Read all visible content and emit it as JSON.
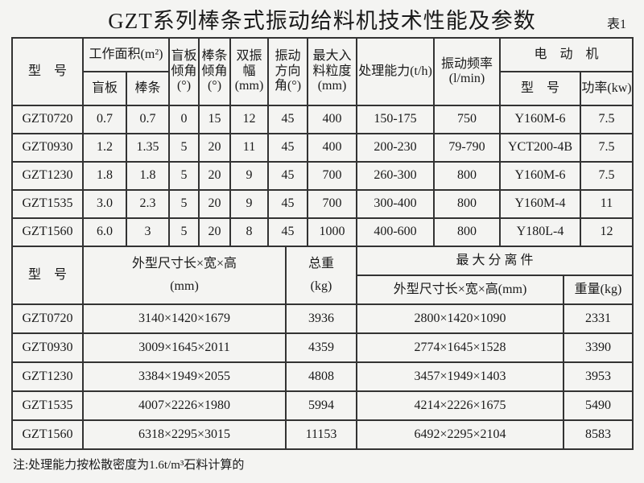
{
  "title": "GZT系列棒条式振动给料机技术性能及参数",
  "table_no": "表1",
  "t1": {
    "h": {
      "model": "型　号",
      "area": "工作面积(m²)",
      "area_blind": "盲板",
      "area_bar": "棒条",
      "blind_angle": "盲板倾角(°)",
      "bar_angle": "棒条倾角(°)",
      "amp": "双振幅(mm)",
      "dir": "振动方向角(°)",
      "maxfeed": "最大入料粒度(mm)",
      "cap": "处理能力(t/h)",
      "freq": "振动频率(l/min)",
      "motor": "电　动　机",
      "motor_model": "型　号",
      "power": "功率(kw)"
    },
    "rows": [
      [
        "GZT0720",
        "0.7",
        "0.7",
        "0",
        "15",
        "12",
        "45",
        "400",
        "150-175",
        "750",
        "Y160M-6",
        "7.5"
      ],
      [
        "GZT0930",
        "1.2",
        "1.35",
        "5",
        "20",
        "11",
        "45",
        "400",
        "200-230",
        "79-790",
        "YCT200-4B",
        "7.5"
      ],
      [
        "GZT1230",
        "1.8",
        "1.8",
        "5",
        "20",
        "9",
        "45",
        "700",
        "260-300",
        "800",
        "Y160M-6",
        "7.5"
      ],
      [
        "GZT1535",
        "3.0",
        "2.3",
        "5",
        "20",
        "9",
        "45",
        "700",
        "300-400",
        "800",
        "Y160M-4",
        "11"
      ],
      [
        "GZT1560",
        "6.0",
        "3",
        "5",
        "20",
        "8",
        "45",
        "1000",
        "400-600",
        "800",
        "Y180L-4",
        "12"
      ]
    ]
  },
  "t2": {
    "h": {
      "model": "型　号",
      "dims": "外型尺寸长×宽×高",
      "dims_unit": "(mm)",
      "weight": "总重",
      "weight_unit": "(kg)",
      "part": "最 大 分 离 件",
      "part_dims": "外型尺寸长×宽×高(mm)",
      "part_weight": "重量(kg)"
    },
    "rows": [
      [
        "GZT0720",
        "3140×1420×1679",
        "3936",
        "2800×1420×1090",
        "2331"
      ],
      [
        "GZT0930",
        "3009×1645×2011",
        "4359",
        "2774×1645×1528",
        "3390"
      ],
      [
        "GZT1230",
        "3384×1949×2055",
        "4808",
        "3457×1949×1403",
        "3953"
      ],
      [
        "GZT1535",
        "4007×2226×1980",
        "5994",
        "4214×2226×1675",
        "5490"
      ],
      [
        "GZT1560",
        "6318×2295×3015",
        "11153",
        "6492×2295×2104",
        "8583"
      ]
    ]
  },
  "note": "注:处理能力按松散密度为1.6t/m³石料计算的"
}
